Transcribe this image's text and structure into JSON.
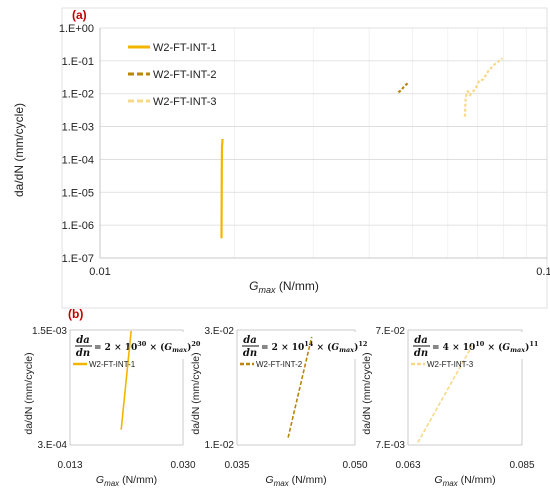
{
  "chart_data": [
    {
      "type": "line",
      "panel_label": "(a)",
      "xlabel_main": "G",
      "xlabel_sub": "max",
      "xlabel_unit": " (N/mm)",
      "ylabel": "da/dN (mm/cycle)",
      "xscale": "log",
      "yscale": "log",
      "xlim": [
        0.01,
        0.1
      ],
      "ylim": [
        1e-07,
        1
      ],
      "xticks": [
        {
          "value": 0.01,
          "label": "0.01"
        },
        {
          "value": 0.1,
          "label": "0.10"
        }
      ],
      "yticks": [
        {
          "value": 1e-07,
          "label": "1.E-07"
        },
        {
          "value": 1e-06,
          "label": "1.E-06"
        },
        {
          "value": 1e-05,
          "label": "1.E-05"
        },
        {
          "value": 0.0001,
          "label": "1.E-04"
        },
        {
          "value": 0.001,
          "label": "1.E-03"
        },
        {
          "value": 0.01,
          "label": "1.E-02"
        },
        {
          "value": 0.1,
          "label": "1.E-01"
        },
        {
          "value": 1,
          "label": "1.E+00"
        }
      ],
      "grid": true,
      "legend_position": "top-left",
      "series": [
        {
          "name": "W2-FT-INT-1",
          "color": "#f2b600",
          "dash": "solid",
          "x": [
            0.0187,
            0.01871,
            0.01872,
            0.01873,
            0.01875,
            0.01877,
            0.01879,
            0.0188
          ],
          "y": [
            4e-07,
            2e-06,
            1e-05,
            6e-05,
            0.00025,
            0.0003,
            0.00035,
            0.00042
          ]
        },
        {
          "name": "W2-FT-INT-2",
          "color": "#b8860b",
          "dash": "dash",
          "x": [
            0.0465,
            0.0472,
            0.0478,
            0.0484,
            0.049
          ],
          "y": [
            0.011,
            0.013,
            0.016,
            0.019,
            0.022
          ]
        },
        {
          "name": "W2-FT-INT-3",
          "color": "#f7d98a",
          "dash": "dash",
          "x": [
            0.0655,
            0.0658,
            0.0665,
            0.0672,
            0.068,
            0.0692,
            0.0705,
            0.072,
            0.074,
            0.0765,
            0.0795
          ],
          "y": [
            0.002,
            0.008,
            0.012,
            0.009,
            0.011,
            0.014,
            0.025,
            0.027,
            0.05,
            0.08,
            0.12
          ]
        }
      ]
    },
    {
      "type": "line",
      "panel_label": "(b)",
      "equation": {
        "coef": "2",
        "exp_a": "30",
        "exp_b": "20"
      },
      "ylabel": "da/dN (mm/cycle)",
      "xlabel_main": "G",
      "xlabel_sub": "max",
      "xlabel_unit": " (N/mm)",
      "xlim": [
        0.013,
        0.03
      ],
      "ylim": [
        0.0003,
        0.0015
      ],
      "xticks": [
        {
          "value": 0.013,
          "label": "0.013"
        },
        {
          "value": 0.03,
          "label": "0.030"
        }
      ],
      "yticks": [
        {
          "value": 0.0003,
          "label": "3.E-04"
        },
        {
          "value": 0.0015,
          "label": "1.5E-03"
        }
      ],
      "series": [
        {
          "name": "W2-FT-INT-1",
          "color": "#f2b600",
          "dash": "solid",
          "x": [
            0.0207,
            0.0222
          ],
          "y": [
            0.00046,
            0.00149
          ]
        }
      ]
    },
    {
      "type": "line",
      "equation": {
        "coef": "2",
        "exp_a": "14",
        "exp_b": "12"
      },
      "ylabel": "da/dN (mm/cycle)",
      "xlabel_main": "G",
      "xlabel_sub": "max",
      "xlabel_unit": " (N/mm)",
      "xlim": [
        0.035,
        0.05
      ],
      "ylim": [
        0.01,
        0.03
      ],
      "xticks": [
        {
          "value": 0.035,
          "label": "0.035"
        },
        {
          "value": 0.05,
          "label": "0.050"
        }
      ],
      "yticks": [
        {
          "value": 0.01,
          "label": "1.E-02"
        },
        {
          "value": 0.03,
          "label": "3.E-02"
        }
      ],
      "series": [
        {
          "name": "W2-FT-INT-2",
          "color": "#b8860b",
          "dash": "dash",
          "x": [
            0.0415,
            0.0445
          ],
          "y": [
            0.0113,
            0.0288
          ]
        }
      ]
    },
    {
      "type": "line",
      "equation": {
        "coef": "4",
        "exp_a": "10",
        "exp_b": "11"
      },
      "ylabel": "da/dN (mm/cycle)",
      "xlabel_main": "G",
      "xlabel_sub": "max",
      "xlabel_unit": " (N/mm)",
      "xlim": [
        0.063,
        0.085
      ],
      "ylim": [
        0.007,
        0.07
      ],
      "xticks": [
        {
          "value": 0.063,
          "label": "0.063"
        },
        {
          "value": 0.085,
          "label": "0.085"
        }
      ],
      "yticks": [
        {
          "value": 0.007,
          "label": "7.E-03"
        },
        {
          "value": 0.07,
          "label": "7.E-02"
        }
      ],
      "series": [
        {
          "name": "W2-FT-INT-3",
          "color": "#f7d98a",
          "dash": "dash",
          "x": [
            0.0649,
            0.0754
          ],
          "y": [
            0.0084,
            0.0615
          ]
        }
      ]
    }
  ]
}
